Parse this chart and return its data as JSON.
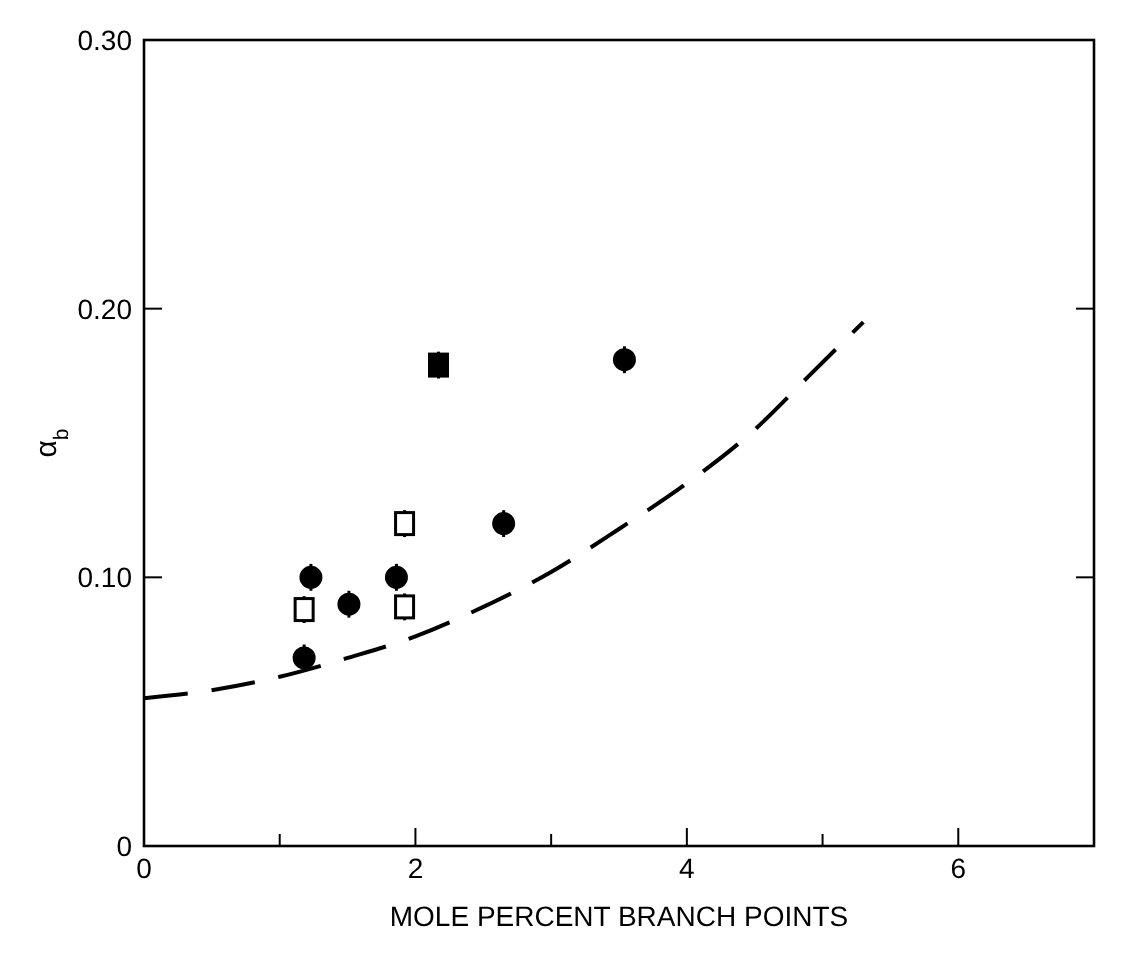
{
  "chart_data": {
    "type": "scatter",
    "xlabel": "MOLE PERCENT BRANCH POINTS",
    "ylabel": "α$_{b}$",
    "xlim": [
      0,
      7
    ],
    "ylim": [
      0,
      0.3
    ],
    "xticks": [
      0,
      {
        "value": 1,
        "label": null
      },
      2,
      {
        "value": 3,
        "label": null
      },
      4,
      {
        "value": 5,
        "label": null
      },
      6
    ],
    "yticks": [
      0,
      {
        "value": 0.1,
        "label": "0.10"
      },
      {
        "value": 0.2,
        "label": "0.20"
      },
      {
        "value": 0.3,
        "label": "0.30"
      }
    ],
    "grid": false,
    "series": [
      {
        "marker": "circle",
        "color": "#000000",
        "x": [
          1.18,
          1.23,
          1.51,
          1.86,
          2.65,
          3.54
        ],
        "values": [
          0.07,
          0.1,
          0.09,
          0.1,
          0.12,
          0.181
        ],
        "errors": [
          0.005,
          0.005,
          0.005,
          0.005,
          0.005,
          0.005
        ]
      },
      {
        "marker": "square",
        "color": "#ffffff",
        "x": [
          1.18,
          1.92,
          1.92
        ],
        "values": [
          0.088,
          0.089,
          0.12
        ],
        "errors": [
          0.005,
          0.005,
          0.005
        ]
      },
      {
        "marker": "square",
        "color": "#000000",
        "x": [
          2.17
        ],
        "values": [
          0.179
        ],
        "errors": [
          0.005
        ]
      },
      {
        "type": "line",
        "line_style": "dashed",
        "color": "#000000",
        "x": [
          0,
          0.5,
          1,
          1.5,
          2,
          2.5,
          3,
          3.5,
          4,
          4.5,
          4.9,
          5.3
        ],
        "values": [
          0.055,
          0.058,
          0.063,
          0.07,
          0.078,
          0.089,
          0.102,
          0.118,
          0.135,
          0.155,
          0.175,
          0.195
        ]
      }
    ]
  }
}
